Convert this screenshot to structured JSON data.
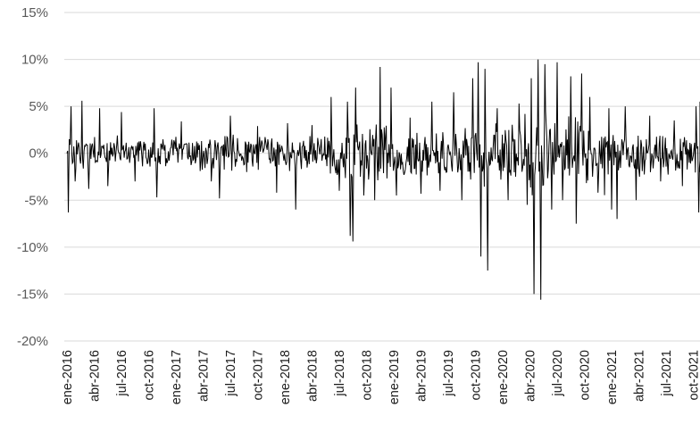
{
  "chart_data": {
    "type": "line",
    "title": "",
    "xlabel": "",
    "ylabel": "",
    "ylim": [
      -0.2,
      0.15
    ],
    "y_tick_values": [
      0.15,
      0.1,
      0.05,
      0.0,
      -0.05,
      -0.1,
      -0.15,
      -0.2
    ],
    "y_tick_labels": [
      "15%",
      "10%",
      "5%",
      "0%",
      "-5%",
      "-10%",
      "-15%",
      "-20%"
    ],
    "x_tick_labels": [
      "ene-2016",
      "abr-2016",
      "jul-2016",
      "oct-2016",
      "ene-2017",
      "abr-2017",
      "jul-2017",
      "oct-2017",
      "ene-2018",
      "abr-2018",
      "jul-2018",
      "oct-2018",
      "ene-2019",
      "abr-2019",
      "jul-2019",
      "oct-2019",
      "ene-2020",
      "abr-2020",
      "jul-2020",
      "oct-2020",
      "ene-2021",
      "abr-2021",
      "jul-2021",
      "oct-2021"
    ],
    "grid": true,
    "legend": "none",
    "line_color": "#000000",
    "grid_color": "#d9d9d9",
    "series": [
      {
        "base_points": [
          {
            "q": 0.0,
            "v": 0.0
          },
          {
            "q": 0.05,
            "v": -0.063
          },
          {
            "q": 0.15,
            "v": 0.05
          },
          {
            "q": 0.3,
            "v": -0.03
          },
          {
            "q": 0.55,
            "v": 0.056
          },
          {
            "q": 0.8,
            "v": -0.038
          },
          {
            "q": 1.2,
            "v": 0.048
          },
          {
            "q": 1.5,
            "v": -0.035
          },
          {
            "q": 2.0,
            "v": 0.044
          },
          {
            "q": 2.5,
            "v": -0.03
          },
          {
            "q": 3.2,
            "v": 0.048
          },
          {
            "q": 3.3,
            "v": -0.047
          },
          {
            "q": 4.2,
            "v": 0.034
          },
          {
            "q": 5.3,
            "v": -0.03
          },
          {
            "q": 5.6,
            "v": -0.048
          },
          {
            "q": 6.0,
            "v": 0.04
          },
          {
            "q": 6.6,
            "v": -0.02
          },
          {
            "q": 7.0,
            "v": 0.029
          },
          {
            "q": 7.7,
            "v": -0.042
          },
          {
            "q": 8.1,
            "v": 0.032
          },
          {
            "q": 8.4,
            "v": -0.06
          },
          {
            "q": 9.0,
            "v": 0.03
          },
          {
            "q": 9.7,
            "v": 0.06
          },
          {
            "q": 10.0,
            "v": -0.04
          },
          {
            "q": 10.3,
            "v": 0.055
          },
          {
            "q": 10.4,
            "v": -0.088
          },
          {
            "q": 10.5,
            "v": -0.094
          },
          {
            "q": 10.6,
            "v": 0.07
          },
          {
            "q": 10.9,
            "v": -0.045
          },
          {
            "q": 11.3,
            "v": -0.05
          },
          {
            "q": 11.5,
            "v": 0.092
          },
          {
            "q": 11.9,
            "v": 0.07
          },
          {
            "q": 12.1,
            "v": -0.045
          },
          {
            "q": 12.6,
            "v": 0.038
          },
          {
            "q": 13.0,
            "v": -0.043
          },
          {
            "q": 13.4,
            "v": 0.055
          },
          {
            "q": 13.7,
            "v": -0.04
          },
          {
            "q": 14.2,
            "v": 0.065
          },
          {
            "q": 14.5,
            "v": -0.05
          },
          {
            "q": 14.9,
            "v": 0.08
          },
          {
            "q": 15.1,
            "v": 0.097
          },
          {
            "q": 15.2,
            "v": -0.11
          },
          {
            "q": 15.35,
            "v": 0.09
          },
          {
            "q": 15.45,
            "v": -0.125
          },
          {
            "q": 15.8,
            "v": 0.048
          },
          {
            "q": 16.2,
            "v": -0.05
          },
          {
            "q": 16.6,
            "v": 0.053
          },
          {
            "q": 16.9,
            "v": -0.055
          },
          {
            "q": 17.05,
            "v": 0.08
          },
          {
            "q": 17.15,
            "v": -0.15
          },
          {
            "q": 17.3,
            "v": 0.1
          },
          {
            "q": 17.4,
            "v": -0.156
          },
          {
            "q": 17.55,
            "v": 0.095
          },
          {
            "q": 17.8,
            "v": -0.06
          },
          {
            "q": 18.0,
            "v": 0.097
          },
          {
            "q": 18.2,
            "v": -0.05
          },
          {
            "q": 18.5,
            "v": 0.082
          },
          {
            "q": 18.7,
            "v": -0.075
          },
          {
            "q": 18.9,
            "v": 0.085
          },
          {
            "q": 19.2,
            "v": 0.06
          },
          {
            "q": 19.5,
            "v": -0.042
          },
          {
            "q": 19.9,
            "v": 0.048
          },
          {
            "q": 20.0,
            "v": -0.06
          },
          {
            "q": 20.2,
            "v": -0.07
          },
          {
            "q": 20.5,
            "v": 0.05
          },
          {
            "q": 20.9,
            "v": -0.05
          },
          {
            "q": 21.4,
            "v": 0.04
          },
          {
            "q": 21.8,
            "v": -0.03
          },
          {
            "q": 22.3,
            "v": 0.035
          },
          {
            "q": 22.6,
            "v": -0.035
          },
          {
            "q": 23.1,
            "v": 0.05
          },
          {
            "q": 23.2,
            "v": -0.063
          },
          {
            "q": 23.35,
            "v": 0.055
          },
          {
            "q": 23.5,
            "v": -0.02
          }
        ]
      }
    ]
  }
}
